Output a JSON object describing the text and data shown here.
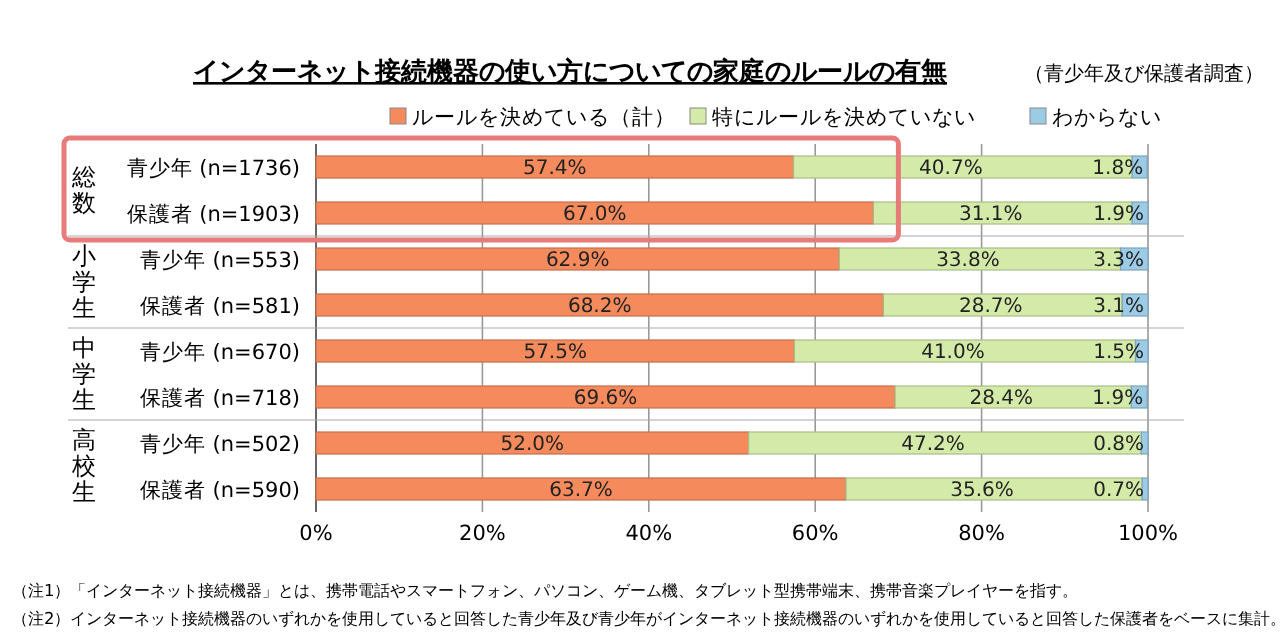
{
  "chart_data": {
    "type": "bar",
    "orientation": "horizontal",
    "stacked": true,
    "title": "インターネット接続機器の使い方についての家庭のルールの有無",
    "subtitle": "（青少年及び保護者調査）",
    "categories": [
      "青少年 (n=1736)",
      "保護者 (n=1903)",
      "青少年 (n=553)",
      "保護者 (n=581)",
      "青少年 (n=670)",
      "保護者 (n=718)",
      "青少年 (n=502)",
      "保護者 (n=590)"
    ],
    "series": [
      {
        "name": "ルールを決めている（計）",
        "color": "#f58a5c",
        "values": [
          57.4,
          67.0,
          62.9,
          68.2,
          57.5,
          69.6,
          52.0,
          63.7
        ],
        "value_labels": [
          "57.4%",
          "67.0%",
          "62.9%",
          "68.2%",
          "57.5%",
          "69.6%",
          "52.0%",
          "63.7%"
        ]
      },
      {
        "name": "特にルールを決めていない",
        "color": "#d3eaa8",
        "values": [
          40.7,
          31.1,
          33.8,
          28.7,
          41.0,
          28.4,
          47.2,
          35.6
        ],
        "value_labels": [
          "40.7%",
          "31.1%",
          "33.8%",
          "28.7%",
          "41.0%",
          "28.4%",
          "47.2%",
          "35.6%"
        ]
      },
      {
        "name": "わからない",
        "color": "#9ccbe6",
        "values": [
          1.8,
          1.9,
          3.3,
          3.1,
          1.5,
          1.9,
          0.8,
          0.7
        ],
        "value_labels": [
          "1.8%",
          "1.9%",
          "3.3%",
          "3.1%",
          "1.5%",
          "1.9%",
          "0.8%",
          "0.7%"
        ]
      }
    ],
    "xlim": [
      0,
      100
    ],
    "xticks": [
      {
        "value": 0,
        "label": "0%"
      },
      {
        "value": 20,
        "label": "20%"
      },
      {
        "value": 40,
        "label": "40%"
      },
      {
        "value": 60,
        "label": "60%"
      },
      {
        "value": 80,
        "label": "80%"
      },
      {
        "value": 100,
        "label": "100%"
      }
    ],
    "grid": "x",
    "legend": "top",
    "annotations": [
      "総数",
      "小学生",
      "中学生",
      "高校生",
      "（注1）「インターネット接続機器」とは、携帯電話やスマートフォン、パソコン、ゲーム機、タブレット型携帯端末、携帯音楽プレイヤーを指す。",
      "（注2）インターネット接続機器のいずれかを使用していると回答した青少年及び青少年がインターネット接続機器のいずれかを使用していると回答した保護者をベースに集計。"
    ]
  }
}
